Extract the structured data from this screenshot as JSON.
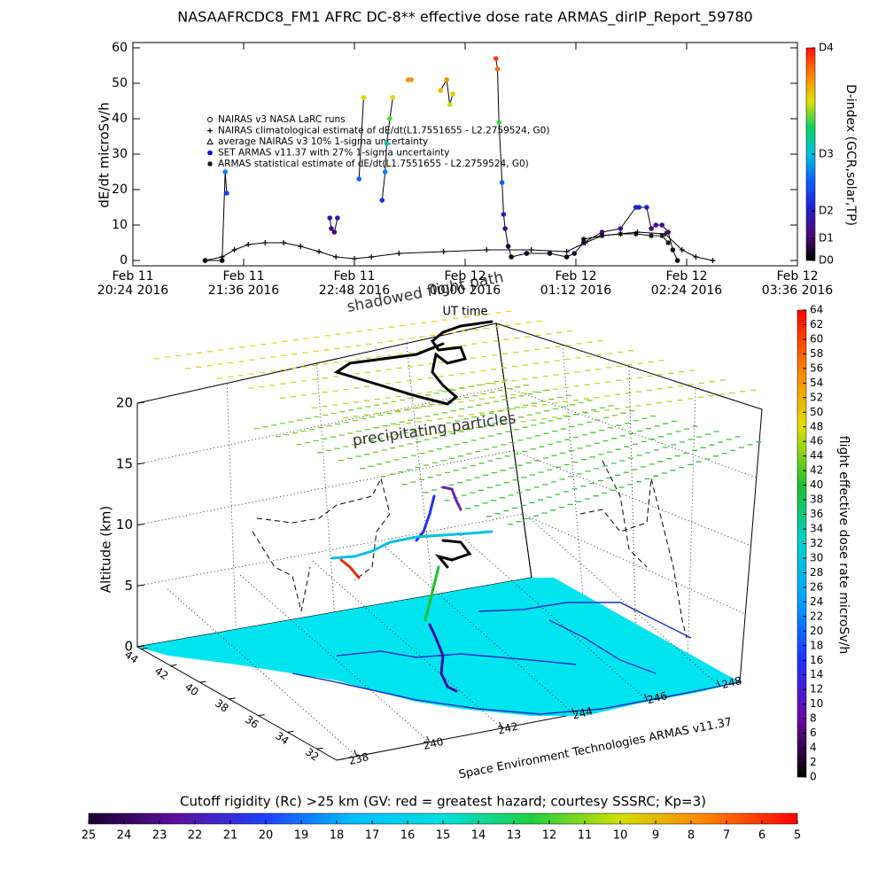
{
  "chart_data": [
    {
      "type": "line",
      "title": "NASAAFRCDC8_FM1 AFRC DC-8** effective dose rate ARMAS_dirIP_Report_59780",
      "ylabel": "dE/dt microSv/h",
      "xlabel": "UT time",
      "xlim": [
        "2016-02-11T20:24",
        "2016-02-12T03:36"
      ],
      "xticks": [
        {
          "value": "2016-02-11T20:24",
          "label": "Feb 11\n20:24 2016"
        },
        {
          "value": "2016-02-11T21:36",
          "label": "Feb 11\n21:36 2016"
        },
        {
          "value": "2016-02-11T22:48",
          "label": "Feb 11\n22:48 2016"
        },
        {
          "value": "2016-02-12T00:00",
          "label": "Feb 12\n00:00 2016"
        },
        {
          "value": "2016-02-12T01:12",
          "label": "Feb 12\n01:12 2016"
        },
        {
          "value": "2016-02-12T02:24",
          "label": "Feb 12\n02:24 2016"
        },
        {
          "value": "2016-02-12T03:36",
          "label": "Feb 12\n03:36 2016"
        }
      ],
      "ylim": [
        -1.5,
        61.5
      ],
      "yticks": [
        0,
        10,
        20,
        30,
        40,
        50,
        60
      ],
      "series": [
        {
          "name": "NAIRAS v3 NASA LaRC runs",
          "marker": "circle-open",
          "color": "#000000",
          "x": [],
          "values": []
        },
        {
          "name": "NAIRAS climatological estimate of dE/dt(L1.7551655 - L2.2759524, G0)",
          "marker": "plus",
          "color": "#000000",
          "x": [
            "2016-02-11T21:11",
            "2016-02-11T21:22",
            "2016-02-11T21:30",
            "2016-02-11T21:39",
            "2016-02-11T21:50",
            "2016-02-11T22:02",
            "2016-02-11T22:13",
            "2016-02-11T22:25",
            "2016-02-11T22:36",
            "2016-02-11T22:48",
            "2016-02-11T22:59",
            "2016-02-11T23:17",
            "2016-02-11T23:46",
            "2016-02-12T00:14",
            "2016-02-12T00:43",
            "2016-02-12T01:06",
            "2016-02-12T01:18",
            "2016-02-12T01:29",
            "2016-02-12T01:52",
            "2016-02-12T02:10",
            "2016-02-12T02:21",
            "2016-02-12T02:30",
            "2016-02-12T02:41"
          ],
          "values": [
            0,
            1,
            3,
            4.5,
            5,
            5,
            4,
            2.5,
            1,
            0.5,
            1,
            2,
            2.5,
            3,
            3,
            2.5,
            5,
            7,
            8,
            7.5,
            3,
            1,
            0
          ]
        },
        {
          "name": "average NAIRAS v3 10% 1-sigma uncertainty",
          "marker": "triangle",
          "color": "#000000",
          "x": [],
          "values": []
        },
        {
          "name": "SET ARMAS v11.37 with 27% 1-sigma uncertainty",
          "marker": "circle",
          "color": "#0000ff",
          "colored_by": "colorbar",
          "x": [
            "2016-02-11T21:11",
            "2016-02-11T21:22",
            "2016-02-11T21:24",
            "2016-02-11T21:25",
            null,
            "2016-02-11T22:32",
            "2016-02-11T22:33",
            "2016-02-11T22:35",
            "2016-02-11T22:37",
            null,
            "2016-02-11T22:51",
            "2016-02-11T22:54",
            null,
            "2016-02-11T23:06",
            "2016-02-11T23:08",
            "2016-02-11T23:09",
            "2016-02-11T23:11",
            "2016-02-11T23:13",
            null,
            "2016-02-11T23:23",
            "2016-02-11T23:25",
            null,
            "2016-02-11T23:44",
            "2016-02-11T23:48",
            "2016-02-11T23:50",
            "2016-02-11T23:52",
            null,
            "2016-02-12T00:20",
            "2016-02-12T00:21",
            "2016-02-12T00:22",
            "2016-02-12T00:24",
            "2016-02-12T00:25",
            "2016-02-12T00:26",
            "2016-02-12T00:28",
            "2016-02-12T00:30",
            "2016-02-12T00:40",
            "2016-02-12T00:55",
            "2016-02-12T01:06",
            "2016-02-12T01:11",
            "2016-02-12T01:17",
            "2016-02-12T01:29",
            "2016-02-12T01:41",
            "2016-02-12T01:51",
            "2016-02-12T01:53",
            "2016-02-12T01:58",
            "2016-02-12T02:01",
            "2016-02-12T02:04",
            "2016-02-12T02:08",
            "2016-02-12T02:12",
            "2016-02-12T02:15",
            "2016-02-12T02:18"
          ],
          "values": [
            0,
            0,
            25,
            19,
            null,
            12,
            9,
            8,
            12,
            null,
            23,
            46,
            null,
            17,
            25,
            33,
            40,
            46,
            null,
            51,
            51,
            null,
            48,
            51,
            44,
            47,
            null,
            57,
            54,
            39,
            22,
            13,
            9,
            4,
            1,
            2,
            2,
            1,
            2,
            5,
            8,
            9,
            15,
            15,
            15,
            9,
            10,
            10,
            8,
            3,
            0
          ]
        },
        {
          "name": "ARMAS statistical estimate of dE/dt(L1.7551655 - L2.2759524, G0)",
          "marker": "asterisk",
          "color": "#000000",
          "x": [
            "2016-02-12T01:17",
            "2016-02-12T01:29",
            "2016-02-12T01:41",
            "2016-02-12T01:51",
            "2016-02-12T02:01",
            "2016-02-12T02:08",
            "2016-02-12T02:12"
          ],
          "values": [
            6,
            7,
            7.5,
            7.5,
            7,
            7,
            5
          ]
        }
      ],
      "colorbar": {
        "label": "D-index (GCR,solar,TP)",
        "colormap": [
          "#000000",
          "#4a0a78",
          "#2020d0",
          "#1060ff",
          "#00c0e0",
          "#10d060",
          "#e0e000",
          "#ff8000",
          "#ff1010"
        ],
        "ticks": [
          {
            "value": 0,
            "label": "D0"
          },
          {
            "value": 6.25,
            "label": "D1"
          },
          {
            "value": 14,
            "label": "D2"
          },
          {
            "value": 30,
            "label": "D3"
          },
          {
            "value": 60,
            "label": "D4"
          }
        ]
      }
    },
    {
      "type": "scatter3d",
      "title": "shadowed flight path",
      "annotation": "precipitating particles",
      "zlabel": "Altitude (km)",
      "credit": "Space Environment Technologies ARMAS v11.37",
      "zlim": [
        0,
        20
      ],
      "zticks": [
        0,
        5,
        10,
        15,
        20
      ],
      "ylim": [
        44,
        32
      ],
      "yticks": [
        44,
        42,
        40,
        38,
        36,
        34,
        32
      ],
      "xlim": [
        238,
        248
      ],
      "xticks": [
        238,
        240,
        242,
        244,
        246,
        248
      ],
      "colorbar": {
        "label": "flight effective dose rate microSv/h",
        "lim": [
          0,
          64
        ],
        "ticks": [
          0,
          2,
          4,
          6,
          8,
          10,
          12,
          14,
          16,
          18,
          20,
          22,
          24,
          26,
          28,
          30,
          32,
          34,
          36,
          38,
          40,
          42,
          44,
          46,
          48,
          50,
          52,
          54,
          56,
          58,
          60,
          62,
          64
        ],
        "colormap": [
          "#000000",
          "#6a0aa0",
          "#2030ff",
          "#00a0ff",
          "#00d0d0",
          "#20c030",
          "#e0e000",
          "#ff8000",
          "#ff0000"
        ]
      },
      "ground_colorbar": {
        "label": "Cutoff rigidity (Rc) >25 km (GV: red = greatest hazard; courtesy SSSRC; Kp=3)",
        "lim": [
          25,
          5
        ],
        "ticks": [
          25,
          24,
          23,
          22,
          21,
          20,
          19,
          18,
          17,
          16,
          15,
          14,
          13,
          12,
          11,
          10,
          9,
          8,
          7,
          6,
          5
        ],
        "colormap": [
          "#1a0030",
          "#5a10a0",
          "#2040ff",
          "#00c0ff",
          "#00e0e0",
          "#20d040",
          "#d0e000",
          "#ff8000",
          "#ff0000"
        ]
      }
    }
  ]
}
